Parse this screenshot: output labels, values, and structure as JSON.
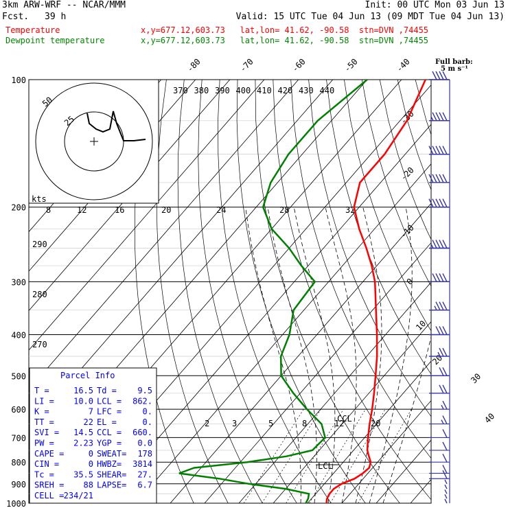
{
  "header": {
    "model": "3km ARW-WRF -- NCAR/MMM",
    "init": "Init: 00 UTC Mon 03 Jun 13",
    "fcst_label": "Fcst.",
    "fcst_value": "39 h",
    "valid": "Valid: 15 UTC Tue 04 Jun 13 (09 MDT Tue 04 Jun 13)",
    "temp_label": "Temperature",
    "dew_label": "Dewpoint temperature",
    "temp_info": "x,y=677.12,603.73   lat,lon= 41.62, -90.58  stn=DVN ,74455",
    "dew_info": "x,y=677.12,603.73   lat,lon= 41.62, -90.58  stn=DVN ,74455",
    "barb_key": "Full barb:",
    "barb_unit": "5 m s⁻¹"
  },
  "colors": {
    "temperature": "#ff0000",
    "dewpoint": "#008000",
    "parcel": "#0000ff",
    "barbs": "#3333aa"
  },
  "parcel_title": "Parcel Info",
  "parcel_rows": [
    {
      "l1": "T   =",
      "v1": "16.5",
      "l2": "Td =",
      "v2": "9.5"
    },
    {
      "l1": "LI  =",
      "v1": "10.0",
      "l2": "LCL =",
      "v2": "862."
    },
    {
      "l1": "K   =",
      "v1": "7",
      "l2": "LFC =",
      "v2": "0."
    },
    {
      "l1": "TT  =",
      "v1": "22",
      "l2": "EL  =",
      "v2": "0."
    },
    {
      "l1": "SVI =",
      "v1": "14.5",
      "l2": "CCL =",
      "v2": "660."
    },
    {
      "l1": "PW  =",
      "v1": "2.23",
      "l2": "YGP =",
      "v2": "0.0"
    },
    {
      "l1": "CAPE =",
      "v1": "0",
      "l2": "SWEAT=",
      "v2": "178"
    },
    {
      "l1": "CIN =",
      "v1": "0",
      "l2": "HWBZ=",
      "v2": "3814"
    },
    {
      "l1": "Tc  =",
      "v1": "35.5",
      "l2": "SHEAR=",
      "v2": "27."
    },
    {
      "l1": "SREH =",
      "v1": "88",
      "l2": "LAPSE=",
      "v2": "6.7"
    },
    {
      "l1": "CELL =",
      "v1": "234/21",
      "l2": "",
      "v2": ""
    }
  ],
  "hodograph": {
    "rings": [
      "25",
      "50"
    ],
    "unit": "kts"
  },
  "chart_data": {
    "type": "line",
    "title": "",
    "ylabel": "",
    "xlabel": "",
    "y_scale": "log",
    "ylim": [
      1000,
      100
    ],
    "pressure_ticks": [
      "100",
      "200",
      "300",
      "400",
      "500",
      "600",
      "700",
      "800",
      "900",
      "1000"
    ],
    "isotherm_labels": [
      "-80",
      "-70",
      "-60",
      "-50",
      "-40",
      "-30",
      "-20",
      "-10",
      "0",
      "10",
      "20",
      "30",
      "40"
    ],
    "theta_labels": [
      "370",
      "380",
      "390",
      "400",
      "410",
      "420",
      "430",
      "440"
    ],
    "theta_side_labels": [
      "290",
      "280",
      "270"
    ],
    "mixing_ratio_labels": [
      "8",
      "12",
      "16",
      "20",
      "24",
      "28",
      "32"
    ],
    "mixing_ratio_low_labels": [
      "2",
      "3",
      "5",
      "8",
      "12",
      "20"
    ],
    "markers": [
      "CCL",
      "LCL"
    ],
    "series": [
      {
        "name": "Temperature",
        "p": [
          1000,
          975,
          950,
          925,
          900,
          875,
          850,
          825,
          800,
          775,
          750,
          700,
          650,
          600,
          550,
          500,
          450,
          400,
          350,
          300,
          275,
          250,
          225,
          200,
          175,
          150,
          125,
          100
        ],
        "values": [
          15.5,
          14.5,
          14.0,
          14.0,
          15.0,
          17.5,
          18.5,
          19.0,
          18.0,
          16.0,
          14.0,
          11.0,
          8.0,
          5.0,
          1.5,
          -2.5,
          -7.0,
          -12.5,
          -19.0,
          -26.5,
          -31.5,
          -37.5,
          -44.5,
          -51.5,
          -56.0,
          -56.0,
          -58.0,
          -63.0
        ]
      },
      {
        "name": "Dewpoint temperature",
        "p": [
          1000,
          975,
          950,
          925,
          900,
          875,
          850,
          825,
          800,
          775,
          750,
          700,
          650,
          600,
          550,
          500,
          450,
          400,
          350,
          300,
          275,
          250,
          225,
          200,
          175,
          150,
          125,
          100
        ],
        "values": [
          9.5,
          9.0,
          8.0,
          0.0,
          -12.0,
          -22.0,
          -35.0,
          -32.0,
          -18.0,
          -8.0,
          -2.0,
          -1.5,
          -6.0,
          -14.0,
          -22.0,
          -30.0,
          -35.0,
          -38.0,
          -43.0,
          -44.0,
          -52.0,
          -60.0,
          -70.0,
          -78.0,
          -82.0,
          -84.0,
          -84.0,
          -80.0
        ]
      }
    ],
    "wind_barbs": {
      "p": [
        1000,
        975,
        950,
        925,
        900,
        875,
        850,
        800,
        750,
        700,
        650,
        600,
        550,
        500,
        450,
        400,
        350,
        300,
        250,
        200,
        175,
        150,
        125,
        100
      ],
      "speed_ms": [
        3,
        3,
        4,
        4,
        4,
        5,
        5,
        5,
        6,
        7,
        8,
        9,
        10,
        12,
        14,
        16,
        18,
        20,
        24,
        26,
        26,
        25,
        24,
        22
      ],
      "dir_deg": [
        200,
        210,
        220,
        230,
        240,
        250,
        260,
        270,
        275,
        280,
        285,
        290,
        290,
        290,
        290,
        290,
        290,
        290,
        290,
        290,
        290,
        290,
        290,
        290
      ]
    }
  }
}
